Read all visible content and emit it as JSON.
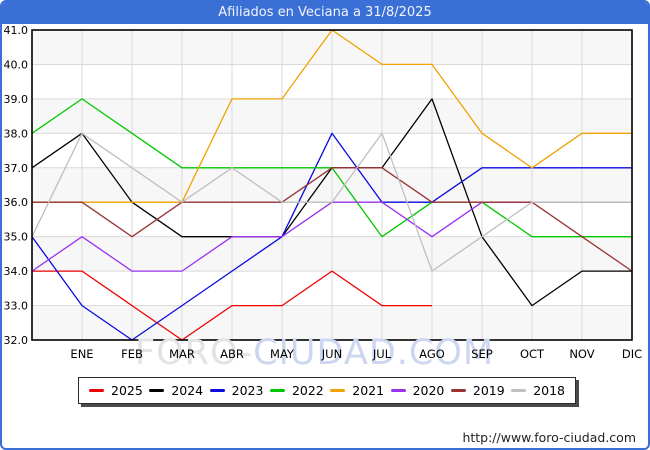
{
  "title": "Afiliados en Veciana a 31/8/2025",
  "footer": {
    "url": "http://www.foro-ciudad.com"
  },
  "watermark": {
    "part1": "FORO-",
    "part2": "CIUDAD.COM"
  },
  "colors": {
    "titlebar_bg": "#3a6fd6",
    "titlebar_text": "#f2f4fa",
    "frame_border": "#3a6fd6",
    "plot_band": "#f7f7f7",
    "plot_bg": "#ffffff",
    "grid": "#d9d9d9",
    "axis_frame": "#000000",
    "tick_label": "#000000",
    "watermark_gray": "#e3e3e6",
    "watermark_blue": "#ccd6f1",
    "legend_border": "#2b2b2b"
  },
  "chart_data": {
    "type": "line",
    "title": "Afiliados en Veciana a 31/8/2025",
    "xlabel": "",
    "ylabel": "",
    "ylim": [
      32,
      41
    ],
    "y_ticks": [
      41,
      40,
      39,
      38,
      37,
      36,
      35,
      34,
      33,
      32
    ],
    "grid": true,
    "legend_position": "bottom",
    "categories": [
      "ENE",
      "FEB",
      "MAR",
      "ABR",
      "MAY",
      "JUN",
      "JUL",
      "AGO",
      "SEP",
      "OCT",
      "NOV",
      "DIC"
    ],
    "series": [
      {
        "name": "2025",
        "color": "#ee0000",
        "start": 34,
        "values": [
          34,
          33,
          32,
          33,
          33,
          34,
          33,
          33,
          null,
          null,
          null,
          null
        ]
      },
      {
        "name": "2024",
        "color": "#000000",
        "start": 37,
        "values": [
          38,
          36,
          35,
          35,
          35,
          37,
          37,
          39,
          35,
          33,
          34,
          34
        ]
      },
      {
        "name": "2023",
        "color": "#0b0bdd",
        "start": 35,
        "values": [
          33,
          32,
          33,
          34,
          35,
          38,
          36,
          36,
          37,
          37,
          37,
          37
        ]
      },
      {
        "name": "2022",
        "color": "#00c800",
        "start": 38,
        "values": [
          39,
          38,
          37,
          37,
          37,
          37,
          35,
          36,
          36,
          35,
          35,
          35
        ]
      },
      {
        "name": "2021",
        "color": "#f0a202",
        "start": 36,
        "values": [
          36,
          36,
          36,
          39,
          39,
          41,
          40,
          40,
          38,
          37,
          38,
          38
        ]
      },
      {
        "name": "2020",
        "color": "#9933ee",
        "start": 34,
        "values": [
          35,
          34,
          34,
          35,
          35,
          36,
          36,
          35,
          36,
          36,
          36,
          36
        ]
      },
      {
        "name": "2019",
        "color": "#993333",
        "start": 36,
        "values": [
          36,
          35,
          36,
          36,
          36,
          37,
          37,
          36,
          36,
          36,
          35,
          34
        ]
      },
      {
        "name": "2018",
        "color": "#bfbfbf",
        "start": 35,
        "values": [
          38,
          37,
          36,
          37,
          36,
          36,
          38,
          34,
          35,
          36,
          36,
          36
        ]
      }
    ]
  }
}
